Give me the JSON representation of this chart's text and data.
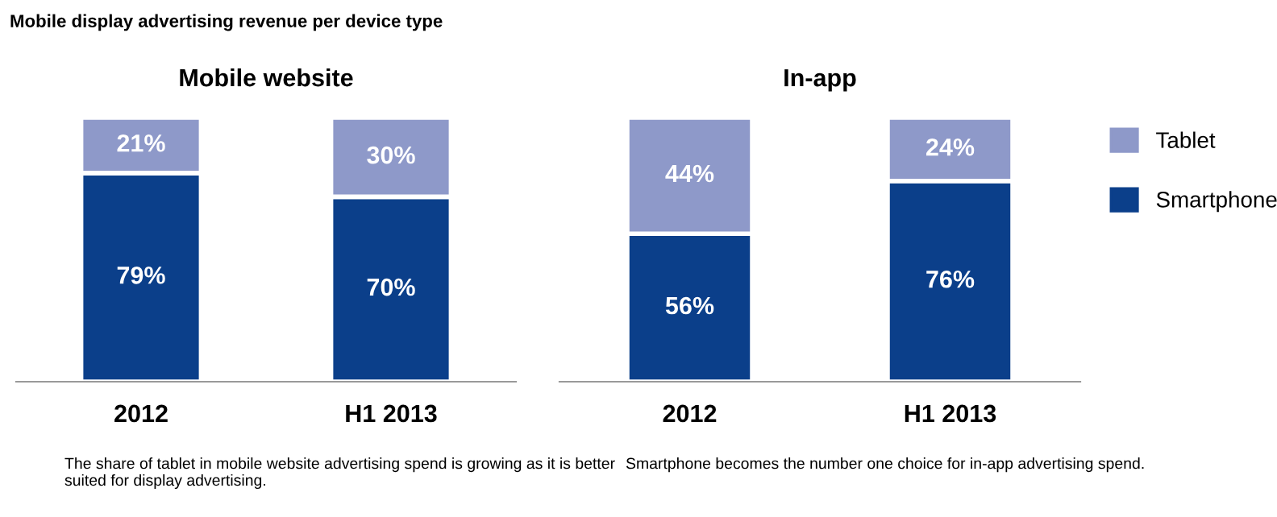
{
  "chart_data": [
    {
      "type": "bar",
      "title": "Mobile website",
      "categories": [
        "2012",
        "H1 2013"
      ],
      "stacked": true,
      "legend": "right",
      "series": [
        {
          "name": "Smartphone",
          "color": "#0b3f8a",
          "values": [
            79,
            70
          ],
          "value_labels": [
            "79%",
            "70%"
          ]
        },
        {
          "name": "Tablet",
          "color": "#8e99c9",
          "values": [
            21,
            30
          ],
          "value_labels": [
            "21%",
            "30%"
          ]
        }
      ],
      "annotations": [
        "Mobile display advertising revenue per device type",
        "The share of tablet in mobile website advertising spend is growing as it is better suited for display advertising."
      ]
    },
    {
      "type": "bar",
      "title": "In-app",
      "categories": [
        "2012",
        "H1 2013"
      ],
      "stacked": true,
      "legend": "right",
      "series": [
        {
          "name": "Smartphone",
          "color": "#0b3f8a",
          "values": [
            56,
            76
          ],
          "value_labels": [
            "56%",
            "76%"
          ]
        },
        {
          "name": "Tablet",
          "color": "#8e99c9",
          "values": [
            44,
            24
          ],
          "value_labels": [
            "44%",
            "24%"
          ]
        }
      ],
      "annotations": [
        "Smartphone becomes the number one choice for in-app advertising spend."
      ]
    }
  ]
}
